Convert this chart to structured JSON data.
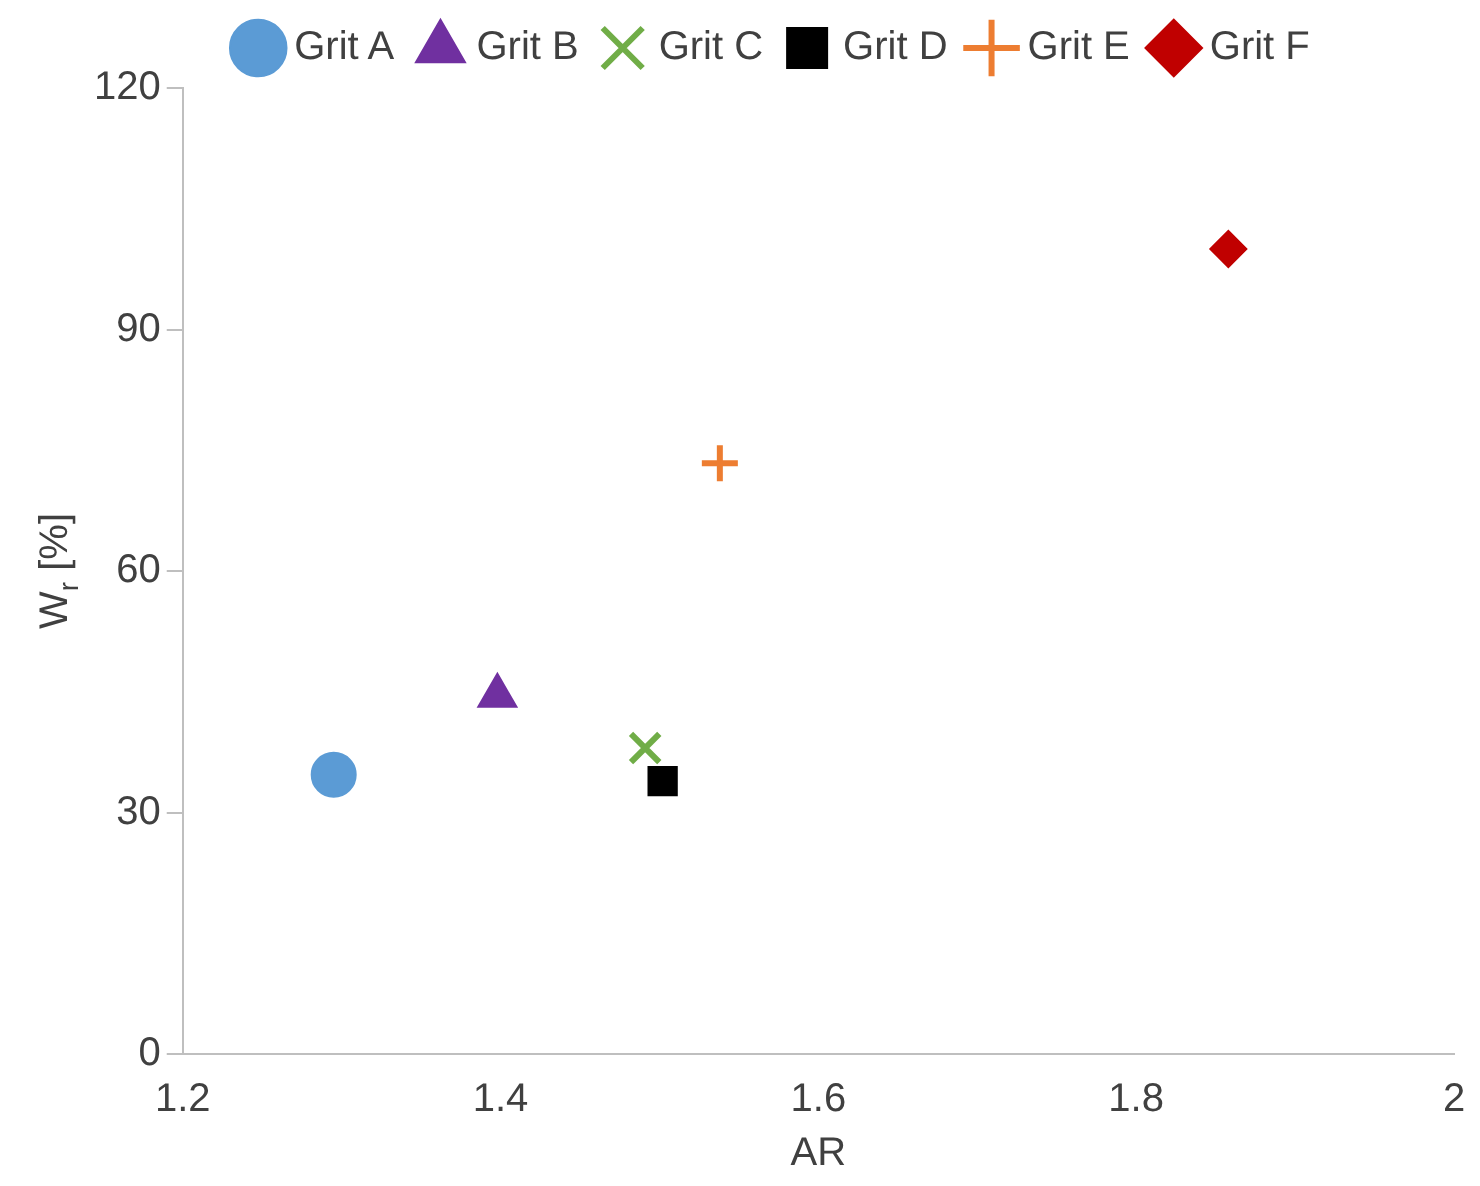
{
  "chart_data": {
    "type": "scatter",
    "xlabel": "AR",
    "ylabel": "W$_{r}$ [%]",
    "xlim": [
      1.2,
      2
    ],
    "xticks": [
      {
        "value": 1.2,
        "label": "1.2"
      },
      {
        "value": 1.4,
        "label": "1.4"
      },
      {
        "value": 1.6,
        "label": "1.6"
      },
      {
        "value": 1.8,
        "label": "1.8"
      },
      2
    ],
    "ylim": [
      0,
      120
    ],
    "yticks": [
      0,
      30,
      60,
      90,
      120
    ],
    "grid": false,
    "legend": "top",
    "series": [
      {
        "name": "Grit A",
        "color": "#5b9bd5",
        "marker": "circle",
        "x": [
          1.295
        ],
        "values": [
          34.7
        ]
      },
      {
        "name": "Grit B",
        "color": "#7030a0",
        "marker": "triangle",
        "x": [
          1.398
        ],
        "values": [
          44.5
        ]
      },
      {
        "name": "Grit C",
        "color": "#70ad47",
        "marker": "x",
        "x": [
          1.491
        ],
        "values": [
          38
        ]
      },
      {
        "name": "Grit D",
        "color": "#000000",
        "marker": "square",
        "x": [
          1.502
        ],
        "values": [
          33.9
        ]
      },
      {
        "name": "Grit E",
        "color": "#ed7d31",
        "marker": "cross",
        "x": [
          1.538
        ],
        "values": [
          73.4
        ]
      },
      {
        "name": "Grit F",
        "color": "#c00000",
        "marker": "diamond",
        "x": [
          1.858
        ],
        "values": [
          100
        ]
      }
    ]
  }
}
